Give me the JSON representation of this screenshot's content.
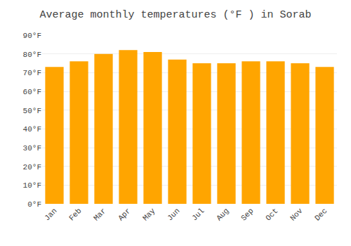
{
  "chart_data": {
    "type": "bar",
    "title": "Average monthly temperatures (°F ) in Sorab",
    "categories": [
      "Jan",
      "Feb",
      "Mar",
      "Apr",
      "May",
      "Jun",
      "Jul",
      "Aug",
      "Sep",
      "Oct",
      "Nov",
      "Dec"
    ],
    "values": [
      73,
      76,
      80,
      82,
      81,
      77,
      75,
      75,
      76,
      76,
      75,
      73
    ],
    "color": "#FFA500",
    "ylim": [
      0,
      90
    ],
    "yticks": [
      {
        "value": 0,
        "label": "0°F"
      },
      {
        "value": 10,
        "label": "10°F"
      },
      {
        "value": 20,
        "label": "20°F"
      },
      {
        "value": 30,
        "label": "30°F"
      },
      {
        "value": 40,
        "label": "40°F"
      },
      {
        "value": 50,
        "label": "50°F"
      },
      {
        "value": 60,
        "label": "60°F"
      },
      {
        "value": 70,
        "label": "70°F"
      },
      {
        "value": 80,
        "label": "80°F"
      },
      {
        "value": 90,
        "label": "90°F"
      }
    ],
    "grid": true
  }
}
